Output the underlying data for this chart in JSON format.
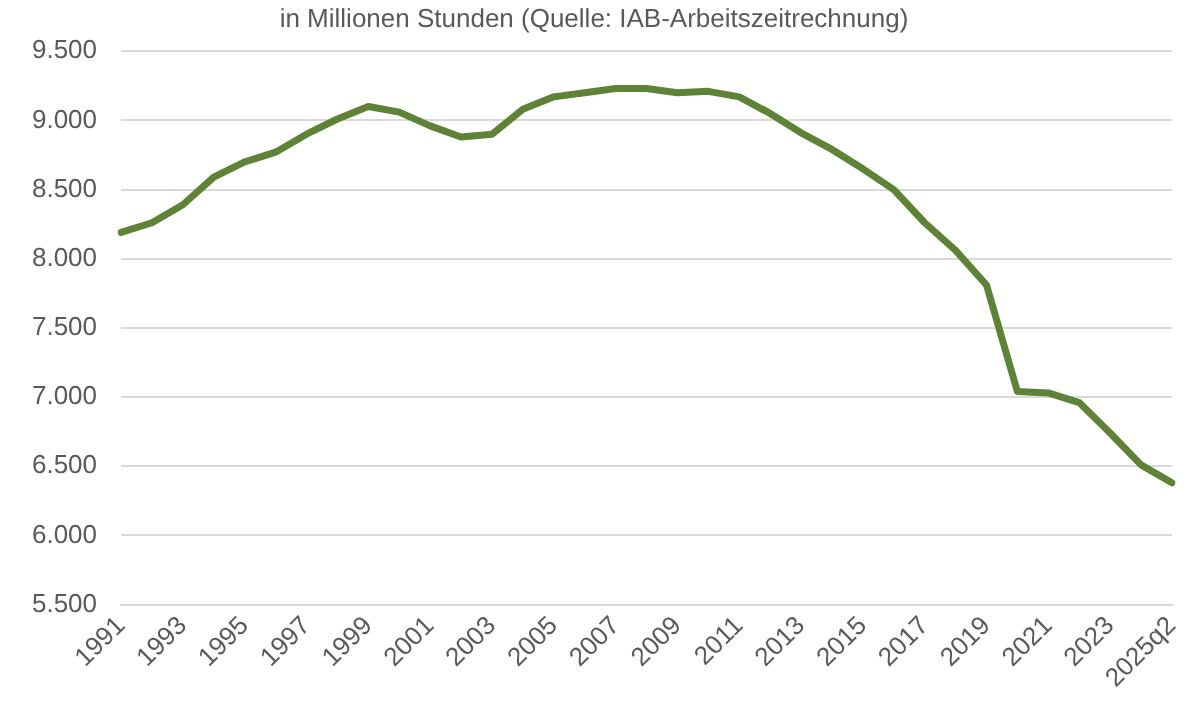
{
  "chart_data": {
    "type": "line",
    "title": "in Millionen Stunden (Quelle: IAB-Arbeitszeitrechnung)",
    "categories": [
      "1991",
      null,
      "1993",
      null,
      "1995",
      null,
      "1997",
      null,
      "1999",
      null,
      "2001",
      null,
      "2003",
      null,
      "2005",
      null,
      "2007",
      null,
      "2009",
      null,
      "2011",
      null,
      "2013",
      null,
      "2015",
      null,
      "2017",
      null,
      "2019",
      null,
      "2021",
      null,
      "2023",
      null,
      "2025q2"
    ],
    "series": [
      {
        "color": "#5e8236",
        "values": [
          8190,
          8260,
          8390,
          8590,
          8700,
          8770,
          8900,
          9010,
          9100,
          9060,
          8960,
          8880,
          8900,
          9080,
          9170,
          9200,
          9230,
          9230,
          9200,
          9210,
          9170,
          9050,
          8910,
          8790,
          8650,
          8500,
          8260,
          8060,
          7810,
          7040,
          7030,
          6960,
          6740,
          6510,
          6380
        ]
      }
    ],
    "ylim": [
      5500,
      9500
    ],
    "yticks": [
      {
        "value": 5500,
        "label": "5.500"
      },
      {
        "value": 6000,
        "label": "6.000"
      },
      {
        "value": 6500,
        "label": "6.500"
      },
      {
        "value": 7000,
        "label": "7.000"
      },
      {
        "value": 7500,
        "label": "7.500"
      },
      {
        "value": 8000,
        "label": "8.000"
      },
      {
        "value": 8500,
        "label": "8.500"
      },
      {
        "value": 9000,
        "label": "9.000"
      },
      {
        "value": 9500,
        "label": "9.500"
      }
    ],
    "grid": "y",
    "legend": false,
    "marker": "none",
    "line_style": "solid"
  }
}
